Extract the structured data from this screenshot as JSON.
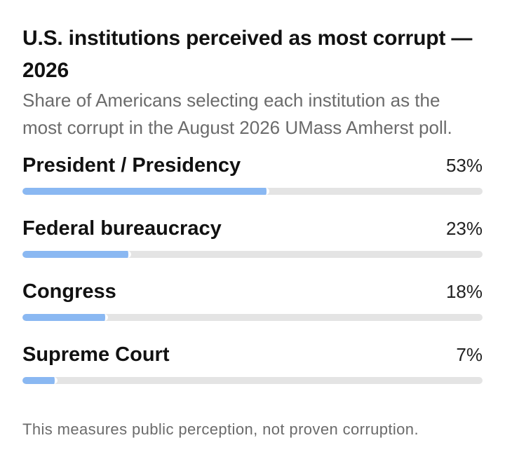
{
  "title": "U.S. institutions perceived as most corrupt — 2026",
  "subtitle": "Share of Americans selecting each institution as the most corrupt in the August 2026 UMass Amherst poll.",
  "footnote": "This measures public perception, not proven corruption.",
  "colors": {
    "bar_fill": "#8ab8f2",
    "bar_track": "#e4e4e4"
  },
  "chart_data": {
    "type": "bar",
    "orientation": "horizontal",
    "title": "U.S. institutions perceived as most corrupt — 2026",
    "xlim": [
      0,
      100
    ],
    "categories": [
      "President / Presidency",
      "Federal bureaucracy",
      "Congress",
      "Supreme Court"
    ],
    "values": [
      53,
      23,
      18,
      7
    ],
    "value_labels": [
      "53%",
      "23%",
      "18%",
      "7%"
    ]
  }
}
